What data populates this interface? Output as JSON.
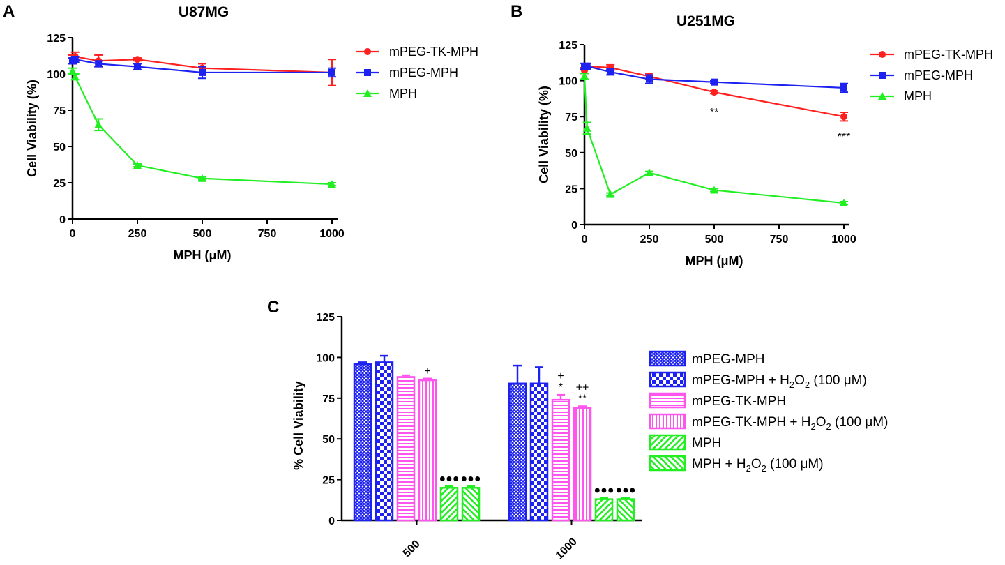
{
  "chart_data": [
    {
      "panel": "A",
      "type": "line",
      "title": "U87MG",
      "xlabel": "MPH (μM)",
      "ylabel": "Cell Viability (%)",
      "xlim": [
        0,
        1000
      ],
      "ylim": [
        0,
        125
      ],
      "xticks": [
        "0",
        "250",
        "500",
        "750",
        "1000"
      ],
      "yticks": [
        "0",
        "25",
        "50",
        "75",
        "100",
        "125"
      ],
      "x": [
        0,
        10,
        100,
        250,
        500,
        1000
      ],
      "series": [
        {
          "name": "mPEG-TK-MPH",
          "color": "#ff2020",
          "marker": "circle",
          "values": [
            110,
            112,
            109,
            110,
            104,
            101
          ],
          "errors": [
            3,
            3,
            4,
            1,
            3,
            9
          ]
        },
        {
          "name": "mPEG-MPH",
          "color": "#1e22f0",
          "marker": "square",
          "values": [
            109,
            110,
            107,
            105,
            101,
            101
          ],
          "errors": [
            2,
            2,
            2,
            2,
            4,
            3
          ]
        },
        {
          "name": "MPH",
          "color": "#22ee22",
          "marker": "triangle",
          "values": [
            102,
            98,
            65,
            37,
            28,
            24
          ],
          "errors": [
            2,
            2,
            4,
            1,
            1,
            1
          ]
        }
      ]
    },
    {
      "panel": "B",
      "type": "line",
      "title": "U251MG",
      "xlabel": "MPH (μM)",
      "ylabel": "Cell Viability (%)",
      "xlim": [
        0,
        1000
      ],
      "ylim": [
        0,
        125
      ],
      "xticks": [
        "0",
        "250",
        "500",
        "750",
        "1000"
      ],
      "yticks": [
        "0",
        "25",
        "50",
        "75",
        "100",
        "125"
      ],
      "x": [
        0,
        10,
        100,
        250,
        500,
        1000
      ],
      "series": [
        {
          "name": "mPEG-TK-MPH",
          "color": "#ff2020",
          "marker": "circle",
          "values": [
            107,
            110,
            109,
            103,
            92,
            75
          ],
          "errors": [
            2,
            2,
            2,
            2,
            1,
            3
          ]
        },
        {
          "name": "mPEG-MPH",
          "color": "#1e22f0",
          "marker": "square",
          "values": [
            110,
            110,
            106,
            101,
            99,
            95
          ],
          "errors": [
            2,
            2,
            2,
            3,
            1,
            3
          ]
        },
        {
          "name": "MPH",
          "color": "#22ee22",
          "marker": "triangle",
          "values": [
            103,
            67,
            21,
            36,
            24,
            15
          ],
          "errors": [
            2,
            4,
            1,
            1,
            1,
            1
          ]
        }
      ],
      "annotations": [
        {
          "x": 500,
          "y": 92,
          "text": "**"
        },
        {
          "x": 1000,
          "y": 75,
          "text": "***"
        }
      ]
    },
    {
      "panel": "C",
      "type": "bar",
      "title": "",
      "xlabel": "",
      "ylabel": "% Cell Viability",
      "ylim": [
        0,
        125
      ],
      "yticks": [
        "0",
        "25",
        "50",
        "75",
        "100",
        "125"
      ],
      "categories": [
        "500",
        "1000"
      ],
      "series": [
        {
          "name": "mPEG-MPH",
          "color": "#1e22f0",
          "pattern": "crosshatch",
          "values": [
            96,
            84
          ],
          "errors": [
            1,
            11
          ],
          "annotations": [
            "",
            ""
          ]
        },
        {
          "name": "mPEG-MPH + H2O2 (100 μM)",
          "color": "#1e22f0",
          "pattern": "checker",
          "values": [
            97,
            84
          ],
          "errors": [
            4,
            10
          ],
          "annotations": [
            "",
            ""
          ]
        },
        {
          "name": "mPEG-TK-MPH",
          "color": "#ff55ee",
          "pattern": "horizontal",
          "values": [
            88,
            74
          ],
          "errors": [
            1,
            3
          ],
          "annotations": [
            "",
            "+\n*"
          ]
        },
        {
          "name": "mPEG-TK-MPH + H2O2 (100 μM)",
          "color": "#ff55ee",
          "pattern": "vertical",
          "values": [
            86,
            69
          ],
          "errors": [
            1,
            1
          ],
          "annotations": [
            "+",
            "++\n**"
          ]
        },
        {
          "name": "MPH",
          "color": "#22ee22",
          "pattern": "diag-right",
          "values": [
            20,
            13
          ],
          "errors": [
            1,
            1
          ],
          "annotations": [
            "●●●",
            "●●●"
          ]
        },
        {
          "name": "MPH + H2O2 (100 μM)",
          "color": "#22ee22",
          "pattern": "diag-left",
          "values": [
            20,
            13
          ],
          "errors": [
            1,
            1
          ],
          "annotations": [
            "●●●",
            "●●●"
          ]
        }
      ],
      "legend": [
        {
          "text": "mPEG-MPH",
          "sub": "",
          "tail": ""
        },
        {
          "text": "mPEG-MPH + H",
          "sub": "2",
          "tail": "O₂ (100 μM)"
        },
        {
          "text": "mPEG-TK-MPH",
          "sub": "",
          "tail": ""
        },
        {
          "text": "mPEG-TK-MPH + H",
          "sub": "2",
          "tail": "O₂ (100 μM)"
        },
        {
          "text": "MPH",
          "sub": "",
          "tail": ""
        },
        {
          "text": "MPH + H",
          "sub": "2",
          "tail": "O₂ (100 μM)"
        }
      ]
    }
  ]
}
